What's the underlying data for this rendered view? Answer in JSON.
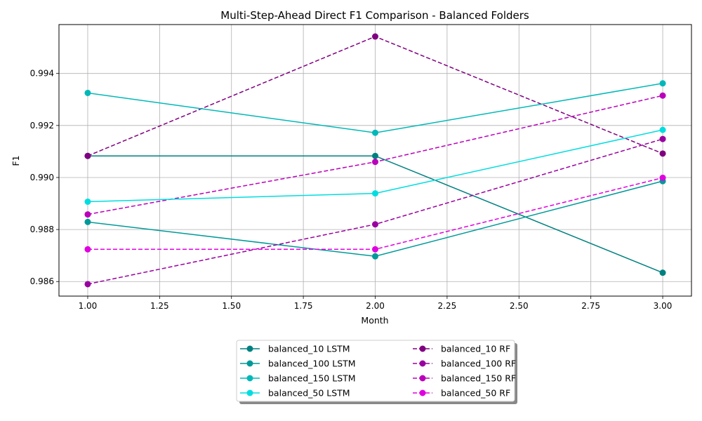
{
  "chart_data": {
    "type": "line",
    "title": "Multi-Step-Ahead Direct F1 Comparison - Balanced Folders",
    "xlabel": "Month",
    "ylabel": "F1",
    "xlim": [
      0.9,
      3.1
    ],
    "ylim": [
      0.98544,
      0.99588
    ],
    "xticks": [
      "1.00",
      "1.25",
      "1.50",
      "1.75",
      "2.00",
      "2.25",
      "2.50",
      "2.75",
      "3.00"
    ],
    "yticks": [
      "0.986",
      "0.988",
      "0.990",
      "0.992",
      "0.994"
    ],
    "grid": true,
    "legend_position": "bottom-center",
    "legend_columns": 2,
    "x": [
      1,
      2,
      3
    ],
    "series": [
      {
        "name": "balanced_10 LSTM",
        "values": [
          0.99083,
          0.99083,
          0.98634
        ],
        "color": "#008080",
        "dashed": false
      },
      {
        "name": "balanced_10 RF",
        "values": [
          0.99083,
          0.99542,
          0.99092
        ],
        "color": "#800080",
        "dashed": true
      },
      {
        "name": "balanced_100 LSTM",
        "values": [
          0.98829,
          0.98697,
          0.98986
        ],
        "color": "#009999",
        "dashed": false
      },
      {
        "name": "balanced_100 RF",
        "values": [
          0.9859,
          0.9882,
          0.99148
        ],
        "color": "#9900a0",
        "dashed": true
      },
      {
        "name": "balanced_150 LSTM",
        "values": [
          0.99325,
          0.99172,
          0.99362
        ],
        "color": "#00b8b8",
        "dashed": false
      },
      {
        "name": "balanced_150 RF",
        "values": [
          0.98858,
          0.9906,
          0.99315
        ],
        "color": "#bb00bb",
        "dashed": true
      },
      {
        "name": "balanced_50 LSTM",
        "values": [
          0.98907,
          0.98939,
          0.99183
        ],
        "color": "#00dde0",
        "dashed": false
      },
      {
        "name": "balanced_50 RF",
        "values": [
          0.98724,
          0.98724,
          0.98999
        ],
        "color": "#e000e0",
        "dashed": true
      }
    ]
  }
}
